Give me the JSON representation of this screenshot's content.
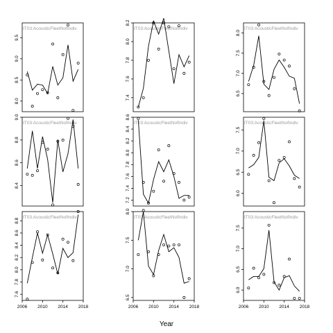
{
  "chart_data": {
    "type": "line",
    "xlabel": "Year",
    "ylabel": "",
    "x_ticks": [
      2006,
      2010,
      2014,
      2018
    ],
    "xlim": [
      2006,
      2018
    ],
    "grid": false,
    "panels": [
      {
        "label": "IT03:AcousticFleetNofIndiv",
        "ylim": [
          7.75,
          9.85
        ],
        "y_ticks": [
          8.0,
          8.5,
          9.0,
          9.5
        ],
        "fitted": {
          "x": [
            2007,
            2008,
            2009,
            2010,
            2011,
            2012,
            2013,
            2014,
            2015,
            2016,
            2017
          ],
          "y": [
            8.7,
            8.26,
            8.4,
            8.38,
            8.18,
            8.82,
            8.38,
            8.55,
            9.33,
            8.47,
            8.75
          ]
        },
        "observed": {
          "x": [
            2007,
            2008,
            2009,
            2010,
            2011,
            2012,
            2013,
            2014,
            2015,
            2016,
            2017
          ],
          "y": [
            8.62,
            7.88,
            8.18,
            8.27,
            8.2,
            9.35,
            8.08,
            9.1,
            9.8,
            7.78,
            8.9
          ]
        }
      },
      {
        "label": "IT03:AcousticFleetNofIndiv",
        "ylim": [
          7.25,
          8.2
        ],
        "y_ticks": [
          7.4,
          7.6,
          7.8,
          8.0,
          8.2
        ],
        "fitted": {
          "x": [
            2007,
            2008,
            2009,
            2010,
            2011,
            2012,
            2013,
            2014,
            2015,
            2016,
            2017
          ],
          "y": [
            7.3,
            7.5,
            7.95,
            8.22,
            8.08,
            8.25,
            7.9,
            7.55,
            7.86,
            7.73,
            7.85
          ]
        },
        "observed": {
          "x": [
            2007,
            2008,
            2009,
            2010,
            2011,
            2012,
            2013,
            2014,
            2015,
            2016,
            2017
          ],
          "y": [
            7.3,
            7.4,
            7.8,
            8.2,
            7.92,
            8.2,
            8.16,
            7.71,
            8.17,
            7.66,
            7.78
          ]
        }
      },
      {
        "label": "IT03:AcousticFleetNofIndiv",
        "ylim": [
          6.05,
          8.25
        ],
        "y_ticks": [
          6.5,
          7.0,
          7.5,
          8.0
        ],
        "fitted": {
          "x": [
            2007,
            2008,
            2009,
            2010,
            2011,
            2012,
            2013,
            2014,
            2015,
            2016,
            2017
          ],
          "y": [
            6.8,
            7.2,
            7.93,
            6.73,
            6.6,
            7.1,
            7.33,
            7.15,
            6.93,
            6.88,
            6.25
          ]
        },
        "observed": {
          "x": [
            2007,
            2008,
            2009,
            2010,
            2011,
            2012,
            2013,
            2014,
            2015,
            2016,
            2017
          ],
          "y": [
            6.72,
            7.15,
            8.2,
            6.8,
            6.45,
            6.9,
            7.48,
            7.33,
            7.18,
            6.62,
            6.07
          ]
        }
      },
      {
        "label": "IT03:AcousticFleetNofIndiv",
        "ylim": [
          8.22,
          9.0
        ],
        "y_ticks": [
          8.4,
          8.6,
          8.8,
          9.0
        ],
        "fitted": {
          "x": [
            2007,
            2008,
            2009,
            2010,
            2011,
            2012,
            2013,
            2014,
            2015,
            2016,
            2017
          ],
          "y": [
            8.55,
            8.88,
            8.55,
            8.83,
            8.63,
            8.25,
            8.8,
            8.52,
            8.68,
            8.98,
            8.55
          ]
        },
        "observed": {
          "x": [
            2007,
            2008,
            2009,
            2010,
            2011,
            2012,
            2013,
            2014,
            2015,
            2016,
            2017
          ],
          "y": [
            8.5,
            8.49,
            8.53,
            8.78,
            8.72,
            8.23,
            8.79,
            8.8,
            8.99,
            8.92,
            8.41
          ]
        }
      },
      {
        "label": "IT03:AcousticFleetNofIndiv",
        "ylim": [
          7.1,
          8.6
        ],
        "y_ticks": [
          7.2,
          7.4,
          7.6,
          7.8,
          8.0,
          8.2,
          8.4,
          8.6
        ],
        "fitted": {
          "x": [
            2007,
            2008,
            2009,
            2010,
            2011,
            2012,
            2013,
            2014,
            2015,
            2016,
            2017
          ],
          "y": [
            8.55,
            7.3,
            7.15,
            7.55,
            7.85,
            7.68,
            7.88,
            7.6,
            7.23,
            7.28,
            7.28
          ]
        },
        "observed": {
          "x": [
            2007,
            2008,
            2009,
            2010,
            2011,
            2012,
            2013,
            2014,
            2015,
            2016,
            2017
          ],
          "y": [
            8.58,
            7.5,
            7.15,
            7.35,
            8.05,
            7.52,
            8.12,
            7.65,
            7.5,
            7.2,
            7.25
          ]
        }
      },
      {
        "label": "IT03:AcousticFleetNofIndiv",
        "ylim": [
          5.7,
          7.8
        ],
        "y_ticks": [
          6.0,
          6.5,
          7.0,
          7.5
        ],
        "fitted": {
          "x": [
            2007,
            2008,
            2009,
            2010,
            2011,
            2012,
            2013,
            2014,
            2015,
            2016,
            2017
          ],
          "y": [
            6.6,
            6.68,
            6.85,
            7.72,
            6.38,
            6.3,
            6.72,
            6.82,
            6.65,
            6.43,
            6.35
          ]
        },
        "observed": {
          "x": [
            2007,
            2008,
            2009,
            2010,
            2011,
            2012,
            2013,
            2014,
            2015,
            2016,
            2017
          ],
          "y": [
            6.45,
            6.9,
            7.2,
            7.77,
            6.3,
            5.78,
            6.78,
            6.85,
            7.22,
            6.35,
            6.15
          ]
        }
      },
      {
        "label": "IT03:AcousticFleetNofIndiv",
        "ylim": [
          7.5,
          8.95
        ],
        "y_ticks": [
          7.6,
          7.8,
          8.0,
          8.2,
          8.4,
          8.6,
          8.8
        ],
        "fitted": {
          "x": [
            2007,
            2008,
            2009,
            2010,
            2011,
            2012,
            2013,
            2014,
            2015,
            2016,
            2017
          ],
          "y": [
            7.78,
            8.2,
            8.6,
            8.27,
            8.57,
            8.26,
            7.93,
            8.35,
            8.2,
            8.28,
            8.9
          ]
        },
        "observed": {
          "x": [
            2007,
            2008,
            2009,
            2010,
            2011,
            2012,
            2013,
            2014,
            2015,
            2016,
            2017
          ],
          "y": [
            7.52,
            8.12,
            8.62,
            8.16,
            8.57,
            8.03,
            7.95,
            8.5,
            8.45,
            8.15,
            8.95
          ]
        }
      },
      {
        "label": "IT03:AcousticFleetNofIndiv",
        "ylim": [
          6.45,
          8.0
        ],
        "y_ticks": [
          6.5,
          7.0,
          7.5,
          8.0
        ],
        "fitted": {
          "x": [
            2007,
            2008,
            2009,
            2010,
            2011,
            2012,
            2013,
            2014,
            2015,
            2016,
            2017
          ],
          "y": [
            7.5,
            8.0,
            7.05,
            6.9,
            7.32,
            7.6,
            7.3,
            7.37,
            7.2,
            6.75,
            6.78
          ]
        },
        "observed": {
          "x": [
            2007,
            2008,
            2009,
            2010,
            2011,
            2012,
            2013,
            2014,
            2015,
            2016,
            2017
          ],
          "y": [
            7.25,
            8.02,
            7.3,
            6.88,
            7.25,
            7.42,
            7.4,
            7.42,
            7.42,
            6.5,
            6.83
          ]
        }
      },
      {
        "label": "IT03:AcousticFleetNofIndiv",
        "ylim": [
          5.75,
          7.9
        ],
        "y_ticks": [
          6.0,
          6.5,
          7.0,
          7.5
        ],
        "fitted": {
          "x": [
            2007,
            2008,
            2009,
            2010,
            2011,
            2012,
            2013,
            2014,
            2015,
            2016,
            2017
          ],
          "y": [
            6.25,
            6.33,
            6.33,
            6.52,
            7.45,
            6.2,
            6.0,
            6.3,
            6.35,
            6.1,
            5.97
          ]
        },
        "observed": {
          "x": [
            2007,
            2008,
            2009,
            2010,
            2011,
            2012,
            2013,
            2014,
            2015,
            2016,
            2017
          ],
          "y": [
            6.05,
            6.53,
            6.3,
            6.38,
            7.57,
            6.18,
            6.12,
            6.33,
            6.75,
            5.8,
            5.8
          ]
        }
      }
    ]
  }
}
